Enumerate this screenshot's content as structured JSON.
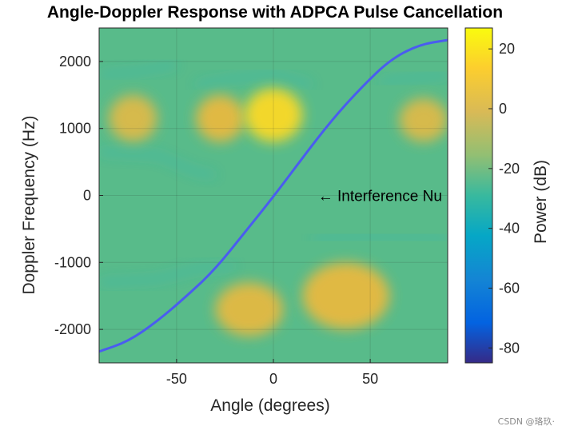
{
  "chart_data": {
    "type": "heatmap",
    "title": "Angle-Doppler Response with ADPCA Pulse Cancellation",
    "xlabel": "Angle (degrees)",
    "ylabel": "Doppler Frequency (Hz)",
    "xlim": [
      -90,
      90
    ],
    "ylim": [
      -2500,
      2500
    ],
    "xticks": [
      -50,
      0,
      50
    ],
    "yticks": [
      -2000,
      -1000,
      0,
      1000,
      2000
    ],
    "grid": true,
    "colormap": "parula",
    "colorbar": {
      "label": "Power (dB)",
      "range": [
        -85,
        27
      ],
      "ticks": [
        20,
        0,
        -20,
        -40,
        -60,
        -80
      ]
    },
    "annotation": {
      "text": "← Interference Nu",
      "x": 23,
      "y": 0
    },
    "clutter_ridge": [
      [
        -90,
        -2330
      ],
      [
        -75,
        -2180
      ],
      [
        -60,
        -1880
      ],
      [
        -45,
        -1510
      ],
      [
        -30,
        -1100
      ],
      [
        -15,
        -560
      ],
      [
        0,
        -20
      ],
      [
        15,
        560
      ],
      [
        30,
        1120
      ],
      [
        45,
        1600
      ],
      [
        60,
        2020
      ],
      [
        75,
        2250
      ],
      [
        90,
        2320
      ]
    ],
    "hot_regions": [
      {
        "x": [
          -40,
          -15
        ],
        "y": [
          800,
          1500
        ],
        "level_db": 5
      },
      {
        "x": [
          -15,
          15
        ],
        "y": [
          800,
          1600
        ],
        "level_db": 18
      },
      {
        "x": [
          -85,
          -60
        ],
        "y": [
          800,
          1500
        ],
        "level_db": 2
      },
      {
        "x": [
          65,
          90
        ],
        "y": [
          800,
          1450
        ],
        "level_db": 2
      },
      {
        "x": [
          15,
          60
        ],
        "y": [
          -2000,
          -1000
        ],
        "level_db": 5
      },
      {
        "x": [
          -30,
          5
        ],
        "y": [
          -2100,
          -1300
        ],
        "level_db": 4
      }
    ]
  },
  "watermark": "CSDN @珞玖·"
}
